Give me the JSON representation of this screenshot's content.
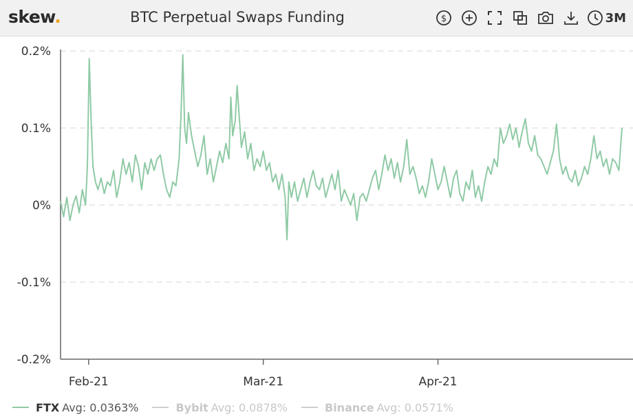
{
  "header": {
    "logo_text": "skew",
    "logo_dot": ".",
    "title": "BTC Perpetual Swaps Funding",
    "range_label": "3M"
  },
  "icons": [
    "dollar-icon",
    "plus-circle-icon",
    "fullscreen-icon",
    "copy-icon",
    "camera-icon",
    "download-icon",
    "clock-icon"
  ],
  "colors": {
    "ftx": "#8fcaa5",
    "inactive": "#cfcfcf",
    "grid": "#e3e3e3",
    "axis": "#666666",
    "header_bg": "#f1f1f1",
    "logo_dot": "#f0a020"
  },
  "legend": [
    {
      "name": "FTX",
      "avg": "Avg: 0.0363%",
      "active": true
    },
    {
      "name": "Bybit",
      "avg": "Avg: 0.0878%",
      "active": false
    },
    {
      "name": "Binance",
      "avg": "Avg: 0.0571%",
      "active": false
    }
  ],
  "chart_data": {
    "type": "line",
    "title": "BTC Perpetual Swaps Funding",
    "xlabel": "",
    "ylabel": "",
    "x_unit": "days since Jan 21 2021",
    "xlim": [
      0,
      90
    ],
    "ylim": [
      -0.2,
      0.2
    ],
    "y_ticks": [
      0.2,
      0.1,
      0,
      -0.1,
      -0.2
    ],
    "y_tick_labels": [
      "0.2%",
      "0.1%",
      "0%",
      "-0.1%",
      "-0.2%"
    ],
    "x_ticks": [
      4.5,
      32.5,
      60.5
    ],
    "x_tick_labels": [
      "Feb-21",
      "Mar-21",
      "Apr-21"
    ],
    "grid": true,
    "series": [
      {
        "name": "FTX",
        "points": [
          [
            0.0,
            0.005
          ],
          [
            0.5,
            -0.015
          ],
          [
            1.0,
            0.01
          ],
          [
            1.5,
            -0.02
          ],
          [
            2.0,
            0.0
          ],
          [
            2.5,
            0.012
          ],
          [
            3.0,
            -0.01
          ],
          [
            3.5,
            0.02
          ],
          [
            4.0,
            0.0
          ],
          [
            4.3,
            0.05
          ],
          [
            4.6,
            0.19
          ],
          [
            4.9,
            0.11
          ],
          [
            5.2,
            0.05
          ],
          [
            5.6,
            0.03
          ],
          [
            6.0,
            0.02
          ],
          [
            6.5,
            0.035
          ],
          [
            7.0,
            0.015
          ],
          [
            7.5,
            0.03
          ],
          [
            8.0,
            0.025
          ],
          [
            8.5,
            0.045
          ],
          [
            9.0,
            0.01
          ],
          [
            9.5,
            0.03
          ],
          [
            10.0,
            0.06
          ],
          [
            10.5,
            0.04
          ],
          [
            11.0,
            0.055
          ],
          [
            11.5,
            0.03
          ],
          [
            12.0,
            0.065
          ],
          [
            12.5,
            0.05
          ],
          [
            13.0,
            0.02
          ],
          [
            13.5,
            0.055
          ],
          [
            14.0,
            0.04
          ],
          [
            14.5,
            0.06
          ],
          [
            15.0,
            0.045
          ],
          [
            15.5,
            0.06
          ],
          [
            16.0,
            0.065
          ],
          [
            16.5,
            0.04
          ],
          [
            17.0,
            0.02
          ],
          [
            17.5,
            0.01
          ],
          [
            18.0,
            0.03
          ],
          [
            18.5,
            0.025
          ],
          [
            19.0,
            0.06
          ],
          [
            19.3,
            0.115
          ],
          [
            19.6,
            0.195
          ],
          [
            19.9,
            0.1
          ],
          [
            20.2,
            0.08
          ],
          [
            20.5,
            0.12
          ],
          [
            21.0,
            0.09
          ],
          [
            21.5,
            0.07
          ],
          [
            22.0,
            0.05
          ],
          [
            22.5,
            0.065
          ],
          [
            23.0,
            0.09
          ],
          [
            23.5,
            0.04
          ],
          [
            24.0,
            0.06
          ],
          [
            24.5,
            0.03
          ],
          [
            25.0,
            0.05
          ],
          [
            25.5,
            0.07
          ],
          [
            26.0,
            0.055
          ],
          [
            26.5,
            0.08
          ],
          [
            27.0,
            0.06
          ],
          [
            27.3,
            0.14
          ],
          [
            27.6,
            0.09
          ],
          [
            28.0,
            0.11
          ],
          [
            28.3,
            0.155
          ],
          [
            28.6,
            0.12
          ],
          [
            29.0,
            0.075
          ],
          [
            29.5,
            0.095
          ],
          [
            30.0,
            0.06
          ],
          [
            30.5,
            0.08
          ],
          [
            31.0,
            0.045
          ],
          [
            31.5,
            0.06
          ],
          [
            32.0,
            0.05
          ],
          [
            32.5,
            0.07
          ],
          [
            33.0,
            0.045
          ],
          [
            33.5,
            0.055
          ],
          [
            34.0,
            0.03
          ],
          [
            34.5,
            0.04
          ],
          [
            35.0,
            0.02
          ],
          [
            35.5,
            0.04
          ],
          [
            36.0,
            0.01
          ],
          [
            36.3,
            -0.045
          ],
          [
            36.6,
            0.03
          ],
          [
            37.0,
            0.01
          ],
          [
            37.5,
            0.03
          ],
          [
            38.0,
            0.005
          ],
          [
            38.5,
            0.02
          ],
          [
            39.0,
            0.035
          ],
          [
            39.5,
            0.01
          ],
          [
            40.0,
            0.03
          ],
          [
            40.5,
            0.045
          ],
          [
            41.0,
            0.025
          ],
          [
            41.5,
            0.02
          ],
          [
            42.0,
            0.035
          ],
          [
            42.5,
            0.01
          ],
          [
            43.0,
            0.025
          ],
          [
            43.5,
            0.04
          ],
          [
            44.0,
            0.02
          ],
          [
            44.5,
            0.045
          ],
          [
            45.0,
            0.005
          ],
          [
            45.5,
            0.02
          ],
          [
            46.0,
            0.01
          ],
          [
            46.5,
            0.0
          ],
          [
            47.0,
            0.015
          ],
          [
            47.5,
            -0.02
          ],
          [
            48.0,
            0.01
          ],
          [
            48.5,
            0.015
          ],
          [
            49.0,
            0.005
          ],
          [
            49.5,
            0.02
          ],
          [
            50.0,
            0.035
          ],
          [
            50.5,
            0.045
          ],
          [
            51.0,
            0.02
          ],
          [
            51.5,
            0.04
          ],
          [
            52.0,
            0.065
          ],
          [
            52.5,
            0.045
          ],
          [
            53.0,
            0.06
          ],
          [
            53.5,
            0.035
          ],
          [
            54.0,
            0.055
          ],
          [
            54.5,
            0.03
          ],
          [
            55.0,
            0.05
          ],
          [
            55.5,
            0.085
          ],
          [
            56.0,
            0.04
          ],
          [
            56.5,
            0.05
          ],
          [
            57.0,
            0.035
          ],
          [
            57.5,
            0.015
          ],
          [
            58.0,
            0.025
          ],
          [
            58.5,
            0.01
          ],
          [
            59.0,
            0.03
          ],
          [
            59.5,
            0.06
          ],
          [
            60.0,
            0.04
          ],
          [
            60.5,
            0.02
          ],
          [
            61.0,
            0.03
          ],
          [
            61.5,
            0.05
          ],
          [
            62.0,
            0.03
          ],
          [
            62.5,
            0.01
          ],
          [
            63.0,
            0.035
          ],
          [
            63.5,
            0.045
          ],
          [
            64.0,
            0.015
          ],
          [
            64.5,
            0.005
          ],
          [
            65.0,
            0.03
          ],
          [
            65.5,
            0.02
          ],
          [
            66.0,
            0.045
          ],
          [
            66.5,
            0.01
          ],
          [
            67.0,
            0.025
          ],
          [
            67.5,
            0.005
          ],
          [
            68.0,
            0.03
          ],
          [
            68.5,
            0.05
          ],
          [
            69.0,
            0.04
          ],
          [
            69.5,
            0.06
          ],
          [
            70.0,
            0.05
          ],
          [
            70.5,
            0.1
          ],
          [
            71.0,
            0.08
          ],
          [
            71.5,
            0.09
          ],
          [
            72.0,
            0.105
          ],
          [
            72.5,
            0.085
          ],
          [
            73.0,
            0.1
          ],
          [
            73.5,
            0.075
          ],
          [
            74.0,
            0.095
          ],
          [
            74.5,
            0.112
          ],
          [
            75.0,
            0.08
          ],
          [
            75.5,
            0.07
          ],
          [
            76.0,
            0.09
          ],
          [
            76.5,
            0.065
          ],
          [
            77.0,
            0.06
          ],
          [
            77.5,
            0.05
          ],
          [
            78.0,
            0.04
          ],
          [
            78.5,
            0.055
          ],
          [
            79.0,
            0.07
          ],
          [
            79.5,
            0.105
          ],
          [
            80.0,
            0.06
          ],
          [
            80.5,
            0.04
          ],
          [
            81.0,
            0.05
          ],
          [
            81.5,
            0.035
          ],
          [
            82.0,
            0.03
          ],
          [
            82.5,
            0.045
          ],
          [
            83.0,
            0.025
          ],
          [
            83.5,
            0.035
          ],
          [
            84.0,
            0.05
          ],
          [
            84.5,
            0.04
          ],
          [
            85.0,
            0.06
          ],
          [
            85.5,
            0.09
          ],
          [
            86.0,
            0.06
          ],
          [
            86.5,
            0.07
          ],
          [
            87.0,
            0.05
          ],
          [
            87.5,
            0.06
          ],
          [
            88.0,
            0.04
          ],
          [
            88.5,
            0.06
          ],
          [
            89.0,
            0.055
          ],
          [
            89.5,
            0.045
          ],
          [
            90.0,
            0.1
          ]
        ]
      }
    ]
  }
}
